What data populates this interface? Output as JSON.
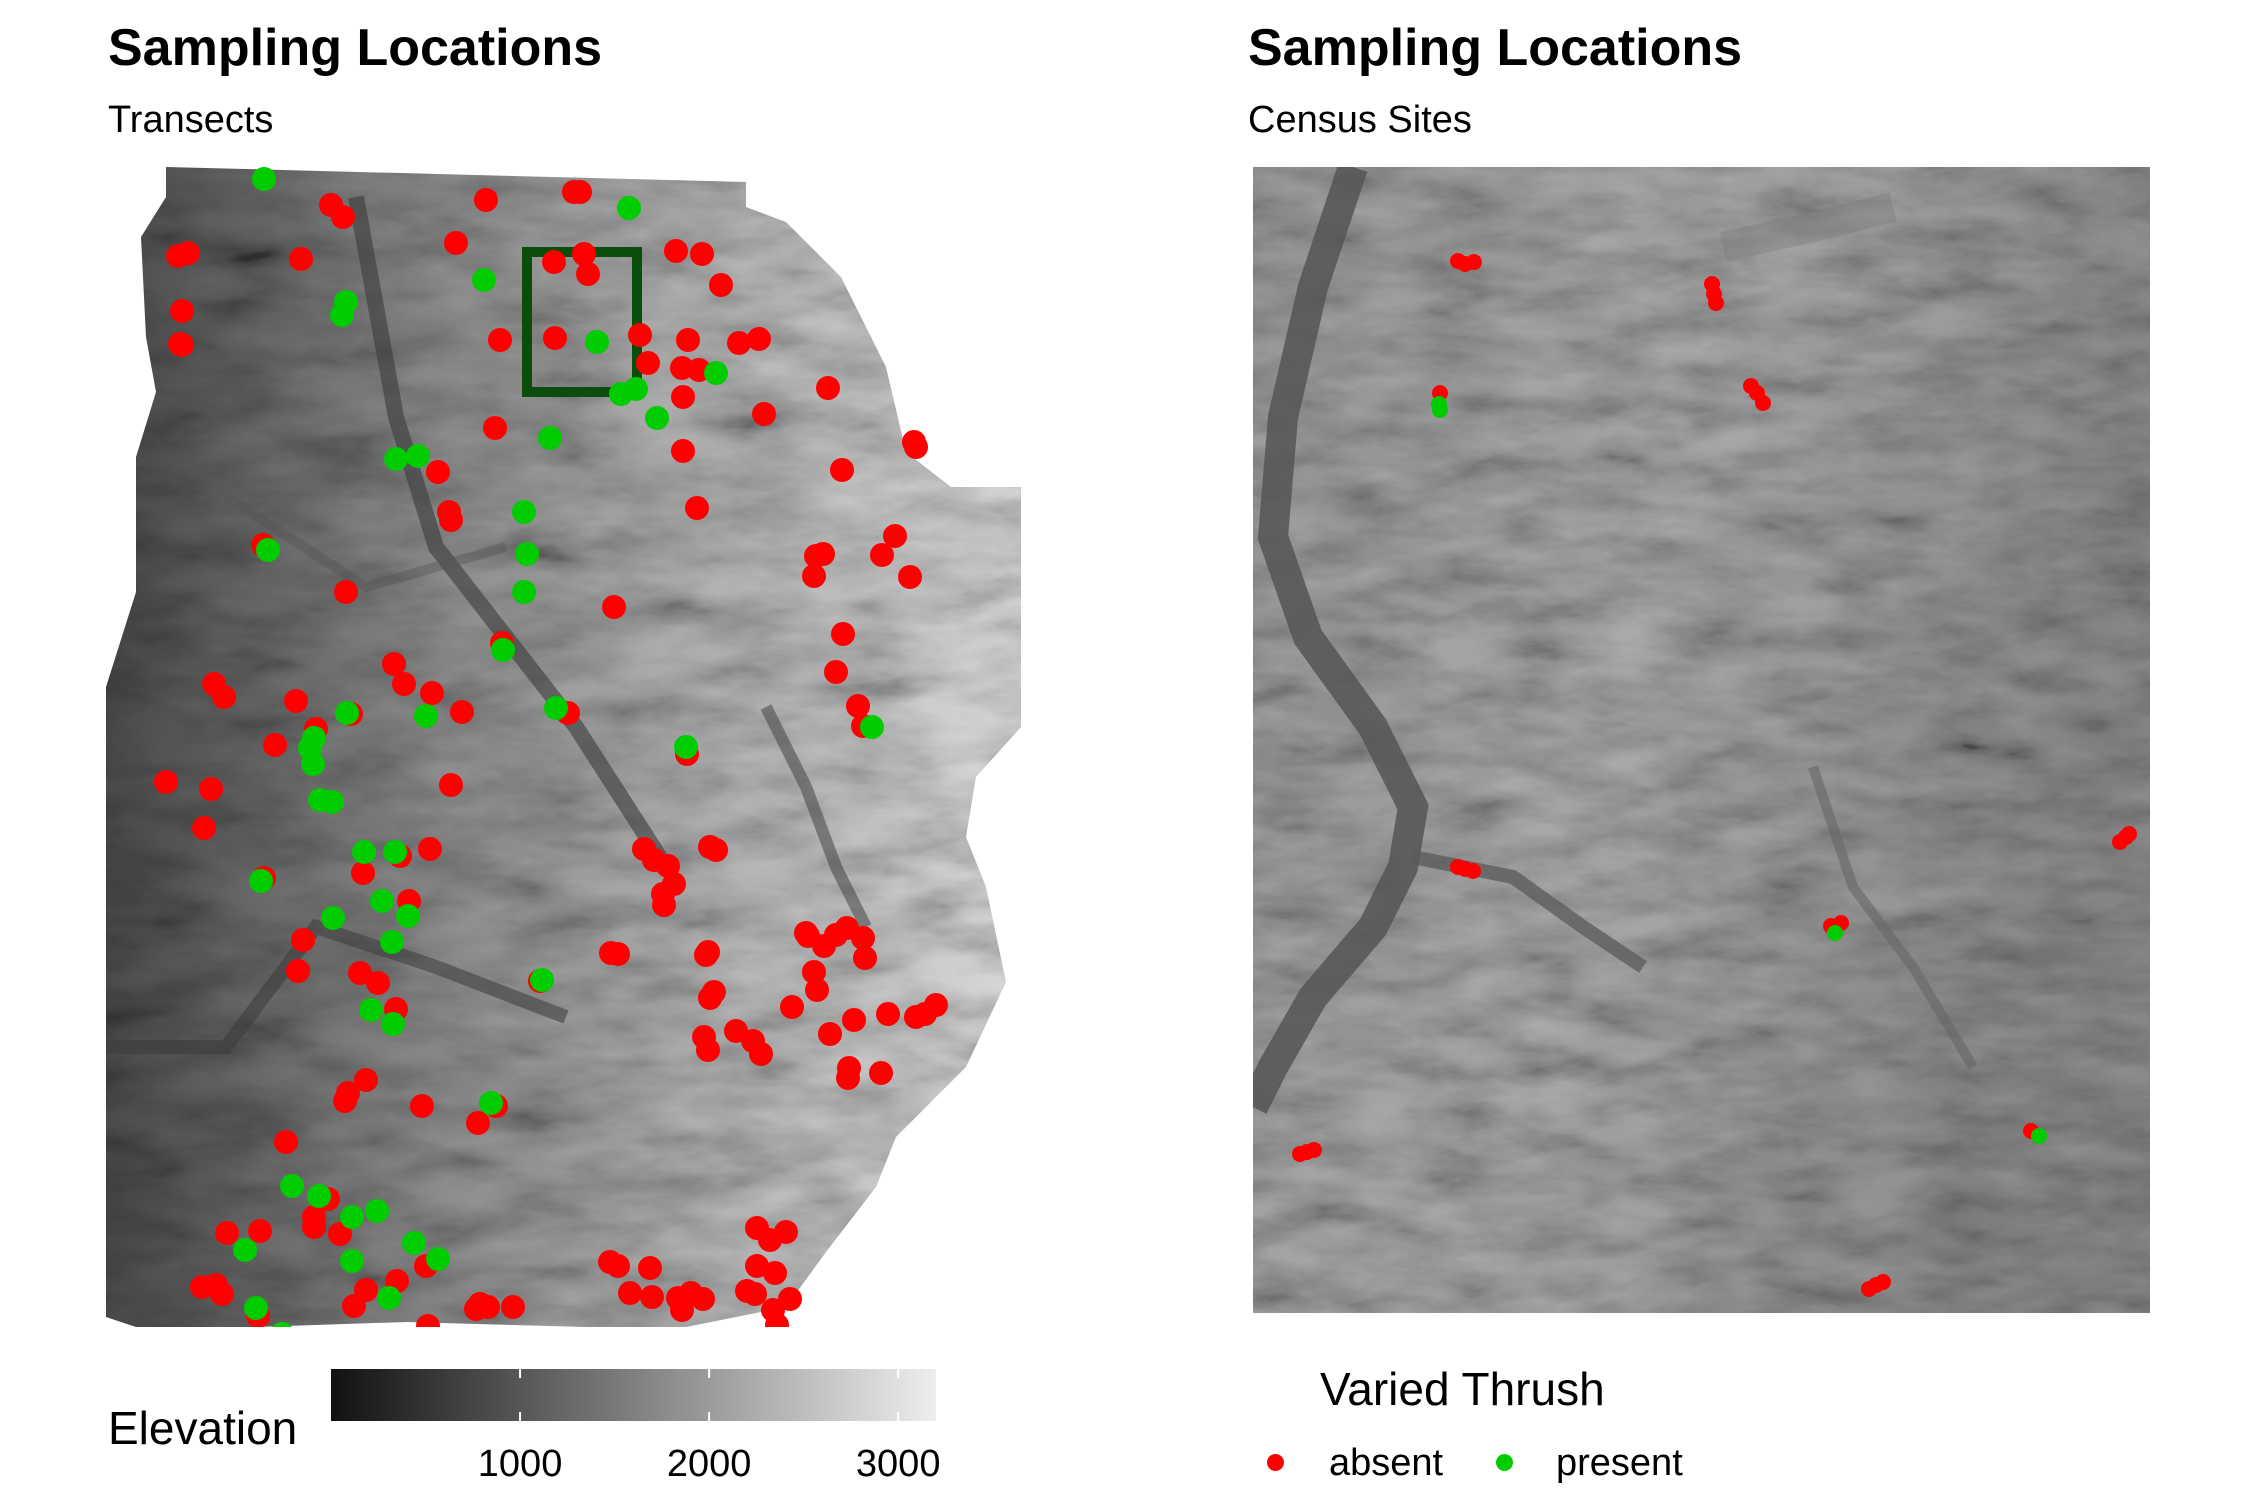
{
  "panels": [
    {
      "title": "Sampling Locations",
      "subtitle": "Transects"
    },
    {
      "title": "Sampling Locations",
      "subtitle": "Census Sites"
    }
  ],
  "elevation_legend": {
    "title": "Elevation",
    "ticks": [
      "1000",
      "2000",
      "3000"
    ],
    "tick_values": [
      1000,
      2000,
      3000
    ],
    "range": [
      0,
      3200
    ],
    "color_low": "#111111",
    "color_high": "#eeeeee"
  },
  "species_legend": {
    "title": "Varied Thrush",
    "items": [
      {
        "label": "absent",
        "color": "#ff0000"
      },
      {
        "label": "present",
        "color": "#00cc00"
      }
    ]
  },
  "colors": {
    "absent": "#ff0000",
    "present": "#00cc00",
    "zoom_box": "#0b4d0b"
  }
}
